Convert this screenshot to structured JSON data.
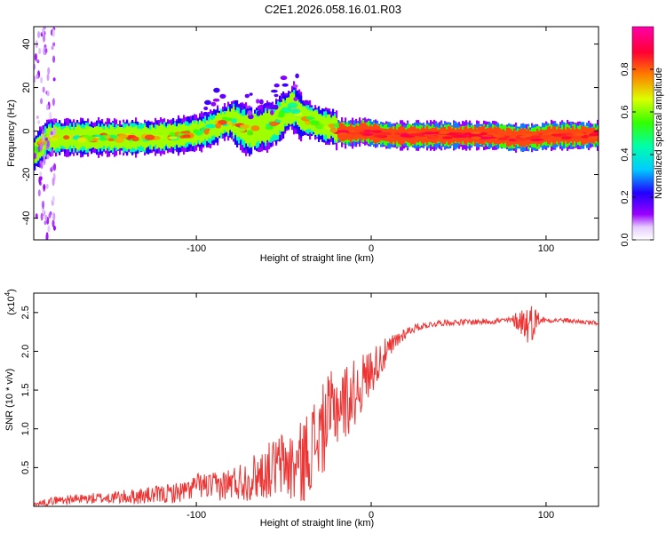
{
  "title": "C2E1.2026.058.16.01.R03",
  "chart_data": [
    {
      "type": "heatmap",
      "name": "spectrogram",
      "xlabel": "Height of straight line (km)",
      "ylabel": "Frequency (Hz)",
      "xlim": [
        -193,
        130
      ],
      "ylim": [
        -50,
        48
      ],
      "xticks": [
        -100,
        0,
        100
      ],
      "yticks": [
        -40,
        -20,
        0,
        20,
        40
      ],
      "ridge": {
        "x": [
          -193,
          -185,
          -170,
          -150,
          -130,
          -110,
          -95,
          -85,
          -80,
          -75,
          -70,
          -65,
          -60,
          -55,
          -50,
          -47,
          -45,
          -40,
          -35,
          -30,
          -25,
          -22,
          -20,
          -15,
          -10,
          -5,
          0,
          10,
          30,
          50,
          70,
          80,
          90,
          95,
          100,
          110,
          120,
          130
        ],
        "y": [
          -10,
          -3,
          -3,
          -3,
          -3,
          -2,
          0,
          4,
          5,
          2,
          0,
          1,
          2,
          4,
          8,
          10,
          11,
          6,
          5,
          3,
          2,
          2,
          0,
          -1,
          -1,
          0,
          -1,
          -2,
          -2,
          -2,
          -2,
          -3,
          -3,
          -3,
          -2,
          -2,
          -2,
          -2
        ]
      },
      "colorbar": {
        "label": "Normalized spectral amplitude",
        "range": [
          0,
          1
        ],
        "ticks": [
          "0.0",
          "0.2",
          "0.4",
          "0.6",
          "0.8"
        ]
      }
    },
    {
      "type": "line",
      "name": "snr",
      "xlabel": "Height of straight line (km)",
      "ylabel": "SNR (10 * v/v)",
      "scale_label": "(x10^4)",
      "scale_base": "(x10",
      "scale_exp": "4",
      "xlim": [
        -193,
        130
      ],
      "ylim": [
        0,
        2.75
      ],
      "xticks": [
        -100,
        0,
        100
      ],
      "yticks": [
        0.5,
        1.0,
        1.5,
        2.0,
        2.5
      ],
      "color": "#ee3333",
      "envelope": {
        "x": [
          -193,
          -180,
          -160,
          -140,
          -120,
          -105,
          -100,
          -90,
          -80,
          -70,
          -60,
          -55,
          -50,
          -45,
          -40,
          -35,
          -30,
          -25,
          -20,
          -15,
          -10,
          -5,
          0,
          5,
          10,
          15,
          20,
          25,
          30,
          40,
          60,
          80,
          85,
          90,
          95,
          100,
          110,
          120,
          130
        ],
        "y": [
          0.02,
          0.08,
          0.1,
          0.12,
          0.15,
          0.2,
          0.28,
          0.25,
          0.3,
          0.35,
          0.45,
          0.5,
          0.55,
          0.5,
          0.55,
          0.75,
          0.9,
          1.1,
          1.3,
          1.35,
          1.45,
          1.6,
          1.75,
          1.9,
          2.0,
          2.15,
          2.25,
          2.3,
          2.33,
          2.37,
          2.38,
          2.4,
          2.4,
          2.35,
          2.42,
          2.4,
          2.4,
          2.38,
          2.36
        ]
      },
      "noise": {
        "x": [
          -193,
          -150,
          -100,
          -80,
          -60,
          -50,
          -40,
          -30,
          -20,
          -10,
          0,
          10,
          20,
          30,
          80,
          88,
          92,
          96,
          100,
          130
        ],
        "amp": [
          0.04,
          0.08,
          0.15,
          0.22,
          0.35,
          0.45,
          0.55,
          0.6,
          0.55,
          0.45,
          0.3,
          0.18,
          0.07,
          0.04,
          0.04,
          0.25,
          0.25,
          0.08,
          0.03,
          0.03
        ]
      }
    }
  ]
}
